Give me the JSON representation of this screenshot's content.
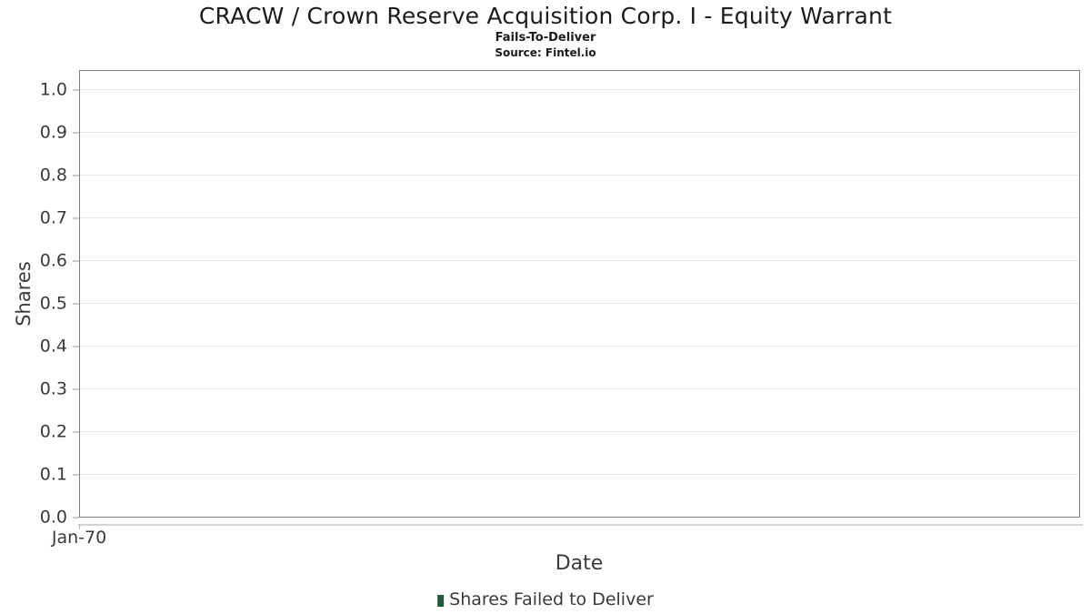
{
  "chart_data": {
    "type": "bar",
    "title": "CRACW / Crown Reserve Acquisition Corp. I - Equity Warrant",
    "subtitle": "Fails-To-Deliver",
    "source": "Source: Fintel.io",
    "xlabel": "Date",
    "ylabel": "Shares",
    "x_tick_labels": [
      "Jan-70"
    ],
    "y_tick_labels": [
      "0.0",
      "0.1",
      "0.2",
      "0.3",
      "0.4",
      "0.5",
      "0.6",
      "0.7",
      "0.8",
      "0.9",
      "1.0"
    ],
    "ylim": [
      0,
      1.046
    ],
    "grid": true,
    "legend_position": "bottom-center",
    "series": [
      {
        "name": "Shares Failed to Deliver",
        "color": "#235c3c",
        "x": [],
        "values": []
      }
    ]
  }
}
